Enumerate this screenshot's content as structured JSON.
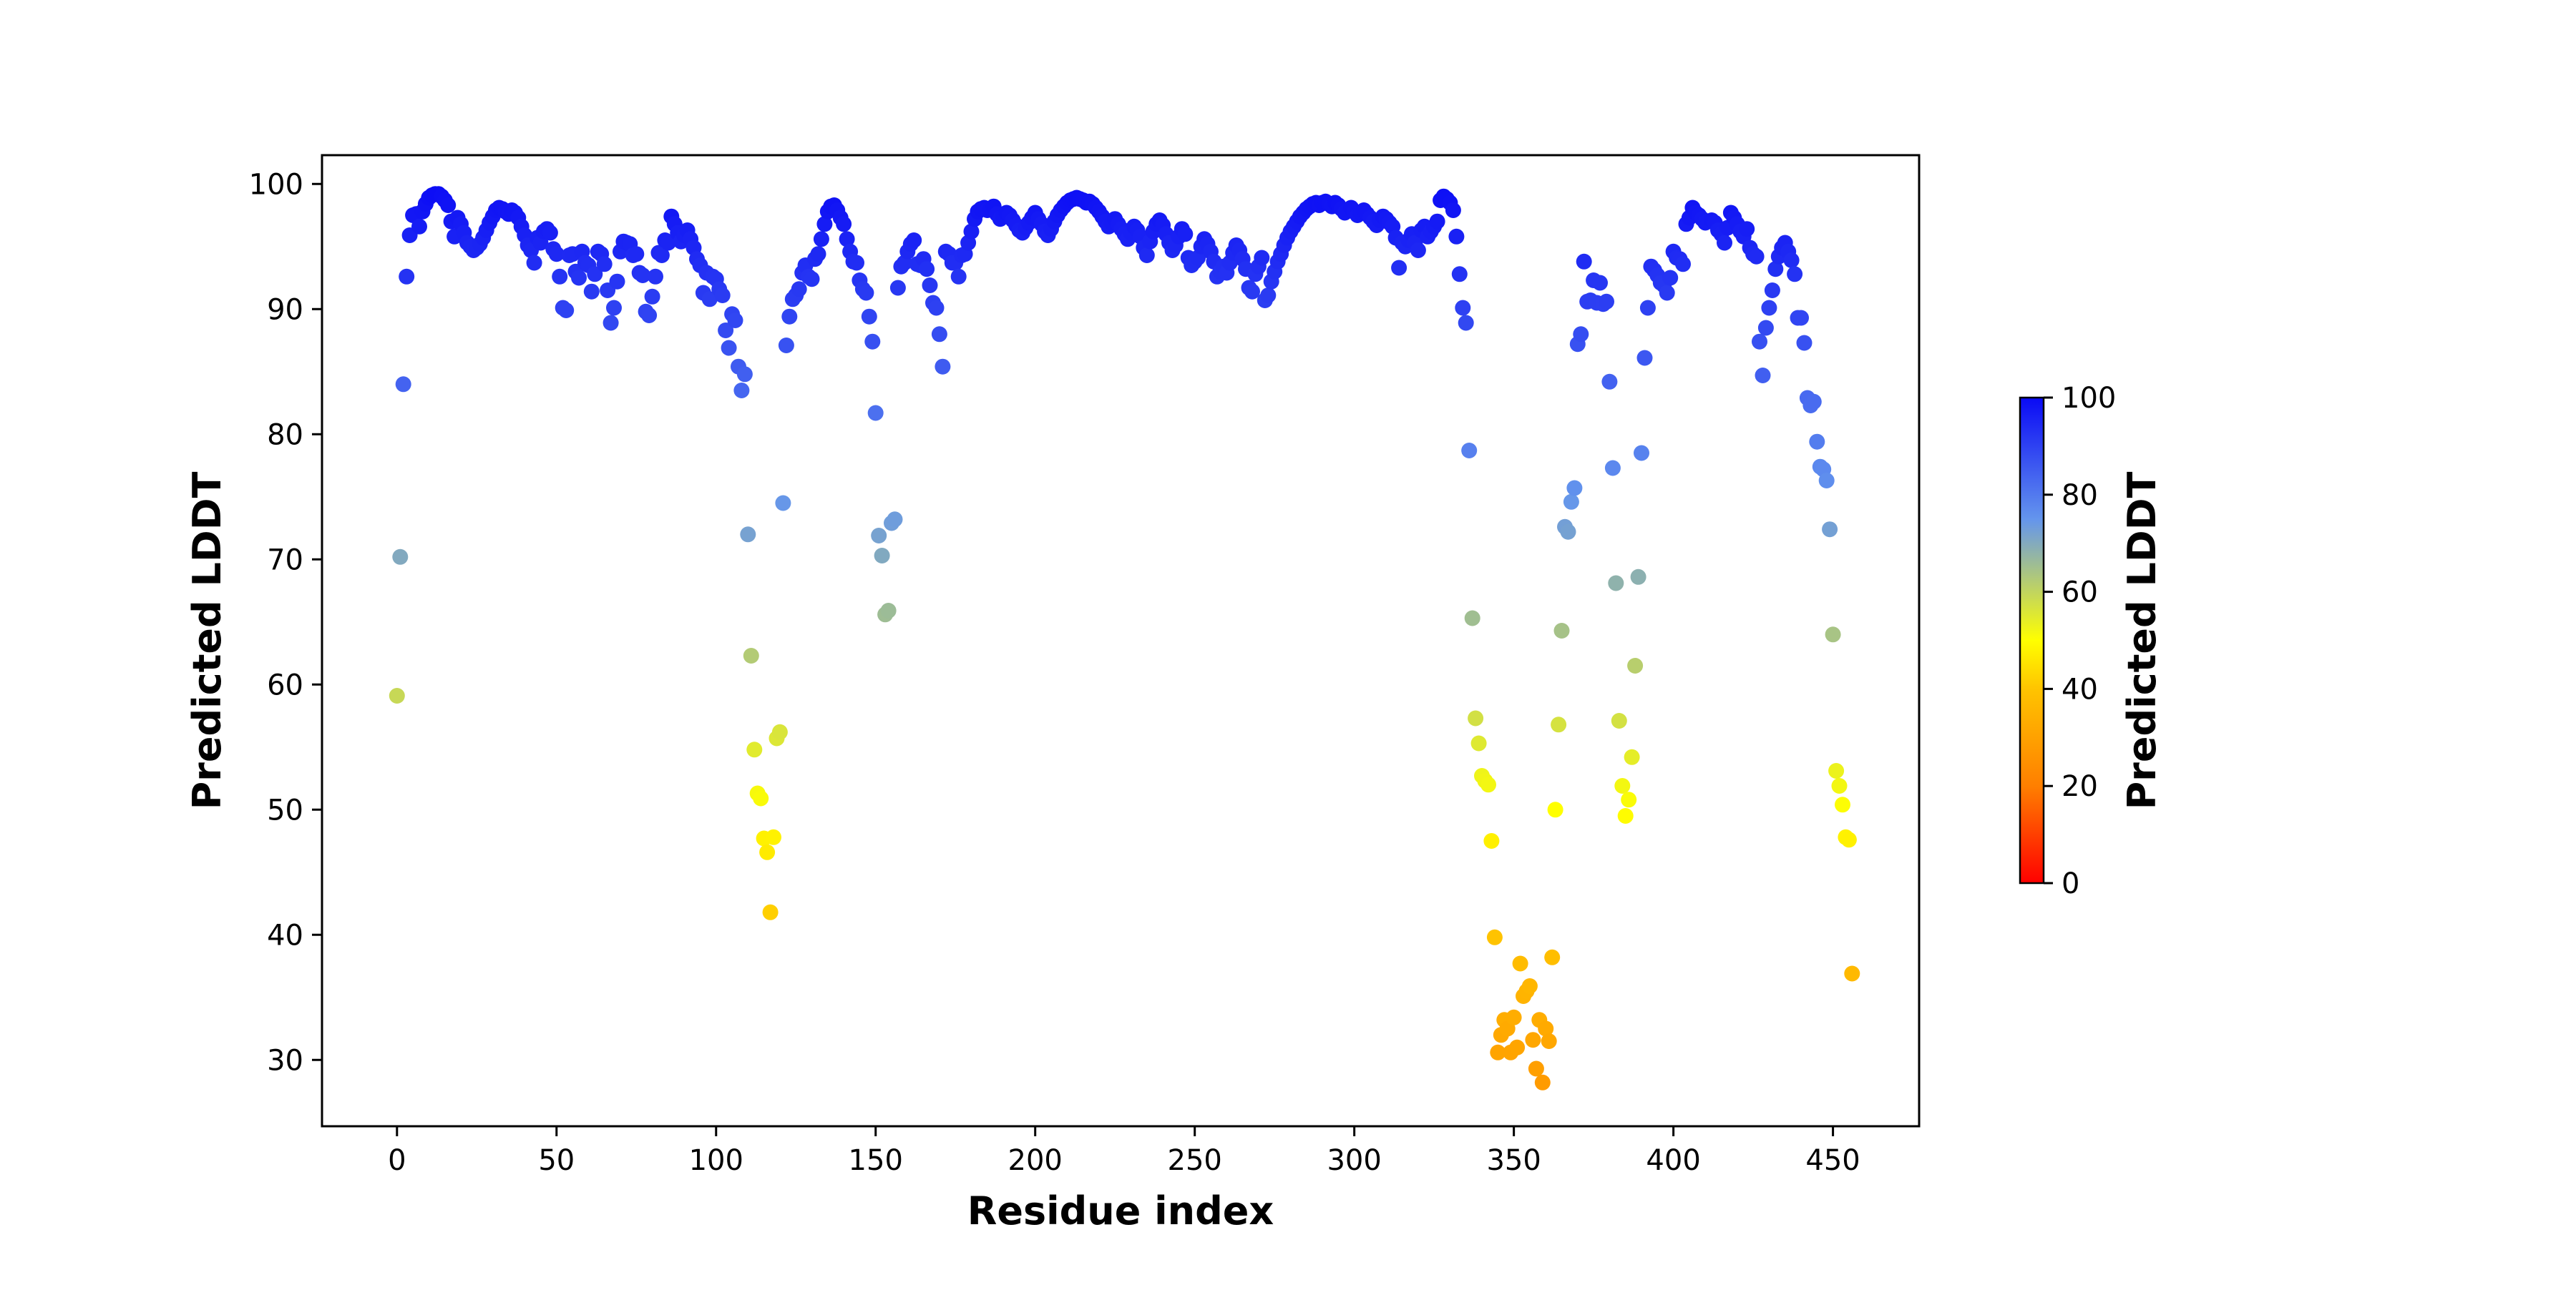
{
  "figure": {
    "background": "#ffffff"
  },
  "chart_data": {
    "type": "scatter",
    "title": "",
    "xlabel": "Residue index",
    "ylabel": "Predicted LDDT",
    "legend": "none",
    "grid": false,
    "x_start": 0,
    "x_step": 1,
    "values": [
      59.1,
      70.2,
      84.0,
      92.6,
      95.9,
      97.5,
      97.6,
      96.6,
      97.8,
      98.4,
      98.9,
      99.1,
      99.2,
      99.2,
      99.0,
      98.7,
      98.3,
      97.0,
      95.8,
      97.3,
      96.8,
      96.1,
      95.3,
      95.0,
      94.7,
      94.9,
      95.2,
      95.7,
      96.3,
      96.9,
      97.4,
      97.9,
      98.1,
      98.0,
      97.8,
      97.6,
      97.9,
      97.7,
      97.3,
      96.6,
      95.9,
      95.1,
      94.7,
      93.7,
      95.7,
      95.3,
      96.2,
      96.4,
      96.1,
      94.8,
      94.4,
      92.6,
      90.1,
      89.9,
      94.3,
      94.4,
      93.0,
      92.5,
      94.6,
      93.7,
      93.5,
      91.4,
      92.8,
      94.6,
      94.4,
      93.6,
      91.5,
      88.9,
      90.1,
      92.2,
      94.6,
      95.4,
      95.3,
      95.2,
      94.3,
      94.4,
      92.9,
      92.7,
      89.8,
      89.5,
      91.0,
      92.6,
      94.5,
      94.3,
      95.5,
      95.3,
      97.4,
      96.8,
      96.1,
      95.4,
      95.9,
      96.3,
      95.6,
      94.9,
      94.0,
      93.5,
      91.3,
      92.9,
      90.8,
      92.6,
      92.4,
      91.6,
      91.1,
      88.3,
      86.9,
      89.6,
      89.1,
      85.4,
      83.5,
      84.8,
      72.0,
      62.3,
      54.8,
      51.3,
      50.9,
      47.7,
      46.6,
      41.8,
      47.8,
      55.7,
      56.2,
      74.5,
      87.1,
      89.4,
      90.8,
      91.1,
      91.6,
      92.9,
      93.5,
      92.6,
      92.4,
      94.0,
      94.4,
      95.6,
      96.8,
      97.8,
      98.2,
      98.3,
      97.9,
      97.3,
      96.8,
      95.6,
      94.6,
      93.8,
      93.7,
      92.3,
      91.6,
      91.3,
      89.4,
      87.4,
      81.7,
      71.9,
      70.3,
      65.6,
      65.9,
      72.9,
      73.2,
      91.7,
      93.4,
      93.7,
      94.6,
      95.2,
      95.5,
      93.6,
      93.5,
      94.0,
      93.2,
      91.9,
      90.5,
      90.1,
      88.0,
      85.4,
      94.6,
      94.4,
      93.7,
      93.7,
      92.6,
      94.3,
      94.4,
      95.3,
      96.2,
      97.2,
      97.8,
      98.0,
      98.1,
      97.9,
      98.0,
      98.2,
      97.6,
      97.2,
      97.4,
      97.7,
      97.5,
      97.1,
      96.7,
      96.3,
      96.1,
      96.5,
      96.9,
      97.3,
      97.7,
      97.2,
      96.8,
      96.2,
      95.9,
      96.4,
      97.0,
      97.5,
      97.9,
      98.2,
      98.5,
      98.7,
      98.8,
      98.9,
      98.8,
      98.7,
      98.5,
      98.6,
      98.4,
      98.1,
      97.8,
      97.4,
      97.0,
      96.6,
      96.9,
      97.2,
      96.8,
      96.4,
      96.0,
      95.6,
      96.1,
      96.6,
      96.3,
      95.8,
      94.9,
      94.3,
      95.4,
      96.2,
      96.8,
      97.1,
      96.7,
      96.0,
      95.3,
      94.7,
      95.1,
      95.8,
      96.4,
      96.0,
      94.1,
      93.5,
      93.8,
      94.1,
      95.0,
      95.6,
      95.2,
      94.6,
      93.8,
      92.6,
      93.0,
      93.4,
      92.9,
      93.7,
      94.5,
      95.1,
      94.7,
      94.0,
      93.2,
      91.7,
      91.4,
      92.8,
      93.4,
      94.1,
      90.7,
      91.1,
      92.2,
      93.0,
      93.8,
      94.4,
      95.1,
      95.7,
      96.2,
      96.6,
      97.0,
      97.4,
      97.7,
      98.0,
      98.2,
      98.4,
      98.5,
      98.3,
      98.5,
      98.6,
      98.4,
      98.2,
      98.5,
      98.3,
      98.0,
      97.7,
      97.9,
      98.1,
      97.8,
      97.5,
      97.7,
      97.9,
      97.6,
      97.3,
      97.0,
      96.7,
      97.1,
      97.4,
      97.2,
      96.9,
      96.6,
      95.7,
      93.3,
      95.3,
      95.0,
      95.5,
      96.0,
      95.3,
      94.7,
      96.3,
      96.6,
      95.8,
      96.2,
      96.6,
      97.0,
      98.7,
      99.0,
      98.8,
      98.5,
      97.9,
      95.8,
      92.8,
      90.1,
      88.9,
      78.7,
      65.3,
      57.3,
      55.3,
      52.7,
      52.3,
      52.0,
      47.5,
      39.8,
      30.6,
      32.0,
      33.2,
      32.5,
      30.6,
      33.4,
      31.0,
      37.7,
      35.1,
      35.5,
      35.9,
      31.6,
      29.3,
      33.2,
      28.2,
      32.5,
      31.5,
      38.2,
      50.0,
      56.8,
      64.3,
      72.6,
      72.2,
      74.6,
      75.7,
      87.2,
      88.0,
      93.8,
      90.6,
      90.7,
      92.3,
      90.5,
      92.1,
      90.4,
      90.6,
      84.2,
      77.3,
      68.1,
      57.1,
      51.9,
      49.5,
      50.8,
      54.2,
      61.5,
      68.6,
      78.5,
      86.1,
      90.1,
      93.4,
      93.1,
      92.7,
      92.1,
      91.9,
      91.3,
      92.5,
      94.6,
      94.1,
      94.0,
      93.6,
      96.8,
      97.3,
      98.1,
      97.7,
      97.5,
      97.2,
      96.9,
      97.0,
      97.1,
      96.9,
      96.3,
      96.0,
      95.3,
      96.5,
      97.7,
      97.3,
      96.8,
      96.2,
      95.8,
      96.4,
      94.9,
      94.4,
      94.2,
      87.4,
      84.7,
      88.5,
      90.1,
      91.5,
      93.2,
      94.2,
      94.9,
      95.3,
      94.6,
      93.9,
      92.8,
      89.3,
      89.3,
      87.3,
      82.9,
      82.3,
      82.6,
      79.4,
      77.4,
      77.2,
      76.3,
      72.4,
      64.0,
      53.1,
      51.9,
      50.4,
      47.8,
      47.6,
      36.9
    ],
    "xticks": [
      0,
      50,
      100,
      150,
      200,
      250,
      300,
      350,
      400,
      450
    ],
    "yticks": [
      30,
      40,
      50,
      60,
      70,
      80,
      90,
      100
    ],
    "xlim": [
      -23.5,
      477
    ],
    "ylim": [
      24.7,
      102.3
    ],
    "marker_diameter_px": 22,
    "colormap_stops": [
      [
        0,
        "#ff0000"
      ],
      [
        20,
        "#ff7f00"
      ],
      [
        40,
        "#ffc400"
      ],
      [
        50,
        "#ffff00"
      ],
      [
        75,
        "#6495ed"
      ],
      [
        100,
        "#0a0af5"
      ]
    ],
    "colorbar": {
      "label": "Predicted LDDT",
      "ticks": [
        0,
        20,
        40,
        60,
        80,
        100
      ],
      "vmin": 0,
      "vmax": 100
    }
  }
}
